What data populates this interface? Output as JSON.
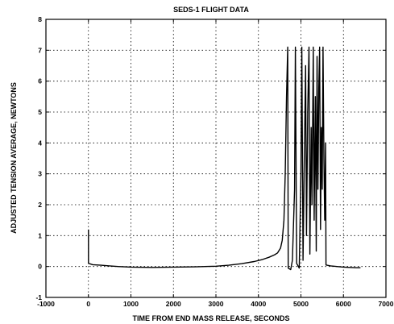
{
  "chart_data": {
    "type": "line",
    "title": "SEDS-1 FLIGHT DATA",
    "xlabel": "TIME FROM END MASS RELEASE, SECONDS",
    "ylabel": "ADJUSTED TENSION AVERAGE, NEWTONS",
    "xlim": [
      -1000,
      7000
    ],
    "ylim": [
      -1,
      8
    ],
    "xticks": [
      -1000,
      0,
      1000,
      2000,
      3000,
      4000,
      5000,
      6000,
      7000
    ],
    "yticks": [
      -1,
      0,
      1,
      2,
      3,
      4,
      5,
      6,
      7,
      8
    ],
    "grid": true,
    "series": [
      {
        "color": "#000000",
        "points": [
          [
            0,
            1.2
          ],
          [
            0,
            0.1
          ],
          [
            50,
            0.08
          ],
          [
            100,
            0.06
          ],
          [
            300,
            0.04
          ],
          [
            500,
            0.02
          ],
          [
            700,
            0.0
          ],
          [
            1000,
            -0.02
          ],
          [
            1500,
            -0.03
          ],
          [
            2000,
            -0.02
          ],
          [
            2500,
            -0.01
          ],
          [
            3000,
            0.01
          ],
          [
            3300,
            0.04
          ],
          [
            3600,
            0.09
          ],
          [
            3900,
            0.16
          ],
          [
            4100,
            0.23
          ],
          [
            4250,
            0.3
          ],
          [
            4380,
            0.38
          ],
          [
            4450,
            0.44
          ],
          [
            4520,
            0.6
          ],
          [
            4560,
            0.85
          ],
          [
            4600,
            1.5
          ],
          [
            4630,
            3.0
          ],
          [
            4660,
            5.5
          ],
          [
            4690,
            7.1
          ],
          [
            4700,
            -0.05
          ],
          [
            4760,
            -0.1
          ],
          [
            4800,
            0.2
          ],
          [
            4850,
            2.5
          ],
          [
            4870,
            7.1
          ],
          [
            4900,
            0.1
          ],
          [
            4960,
            -0.05
          ],
          [
            5000,
            3.0
          ],
          [
            5020,
            7.1
          ],
          [
            5050,
            0.2
          ],
          [
            5080,
            3.5
          ],
          [
            5110,
            6.5
          ],
          [
            5130,
            1.0
          ],
          [
            5160,
            5.0
          ],
          [
            5190,
            7.1
          ],
          [
            5210,
            0.4
          ],
          [
            5240,
            4.5
          ],
          [
            5260,
            2.0
          ],
          [
            5290,
            7.1
          ],
          [
            5310,
            1.5
          ],
          [
            5340,
            5.5
          ],
          [
            5360,
            0.5
          ],
          [
            5380,
            6.8
          ],
          [
            5400,
            2.5
          ],
          [
            5420,
            5.8
          ],
          [
            5440,
            7.1
          ],
          [
            5460,
            1.2
          ],
          [
            5480,
            4.5
          ],
          [
            5500,
            2.5
          ],
          [
            5520,
            7.1
          ],
          [
            5540,
            3.5
          ],
          [
            5560,
            1.5
          ],
          [
            5580,
            4.0
          ],
          [
            5590,
            0.05
          ],
          [
            5700,
            0.02
          ],
          [
            6000,
            -0.02
          ],
          [
            6300,
            -0.04
          ],
          [
            6400,
            -0.04
          ]
        ]
      }
    ]
  }
}
